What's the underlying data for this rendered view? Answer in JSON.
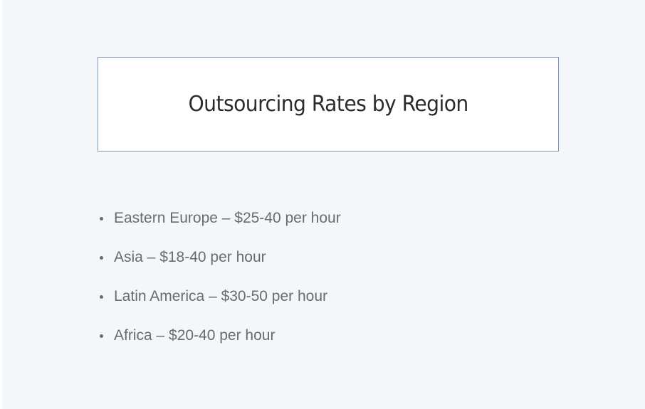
{
  "slide": {
    "title": "Outsourcing Rates by Region",
    "bullets": [
      "Eastern Europe – $25-40 per hour",
      "Asia – $18-40 per hour",
      "Latin America – $30-50 per hour",
      "Africa – $20-40 per hour"
    ]
  },
  "colors": {
    "background": "#f4f7fa",
    "title_border": "#7f97bd",
    "title_text": "#2b2b2b",
    "body_text": "#6b6b6b"
  }
}
